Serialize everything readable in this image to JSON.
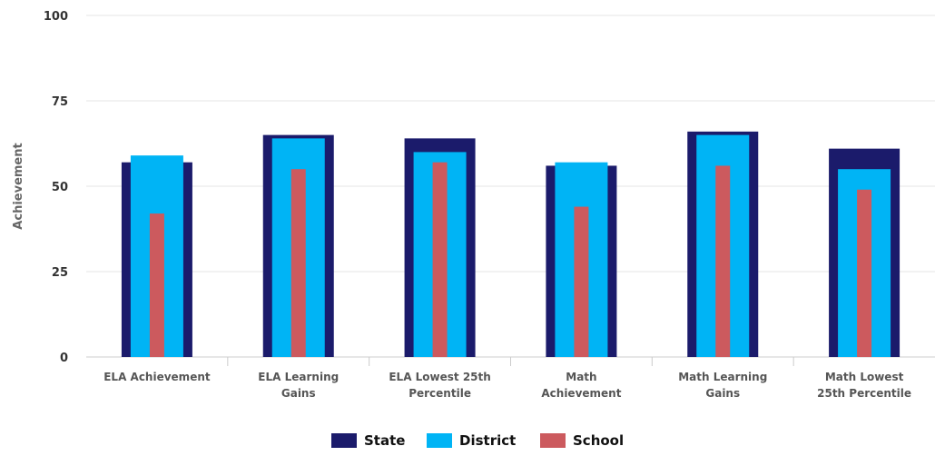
{
  "chart_data": {
    "type": "bar",
    "ylabel": "Achievement",
    "xlabel": "",
    "ylim": [
      0,
      100
    ],
    "yticks": [
      0,
      25,
      50,
      75,
      100
    ],
    "grid": true,
    "legend_position": "bottom",
    "categories": [
      [
        "ELA Achievement"
      ],
      [
        "ELA Learning",
        "Gains"
      ],
      [
        "ELA Lowest 25th",
        "Percentile"
      ],
      [
        "Math",
        "Achievement"
      ],
      [
        "Math Learning",
        "Gains"
      ],
      [
        "Math Lowest",
        "25th Percentile"
      ]
    ],
    "series": [
      {
        "name": "State",
        "color": "#1b1b6b",
        "values": [
          57,
          65,
          64,
          56,
          66,
          61
        ]
      },
      {
        "name": "District",
        "color": "#00b4f5",
        "values": [
          59,
          64,
          60,
          57,
          65,
          55
        ]
      },
      {
        "name": "School",
        "color": "#cc5a5e",
        "values": [
          42,
          55,
          57,
          44,
          56,
          49
        ]
      }
    ]
  }
}
